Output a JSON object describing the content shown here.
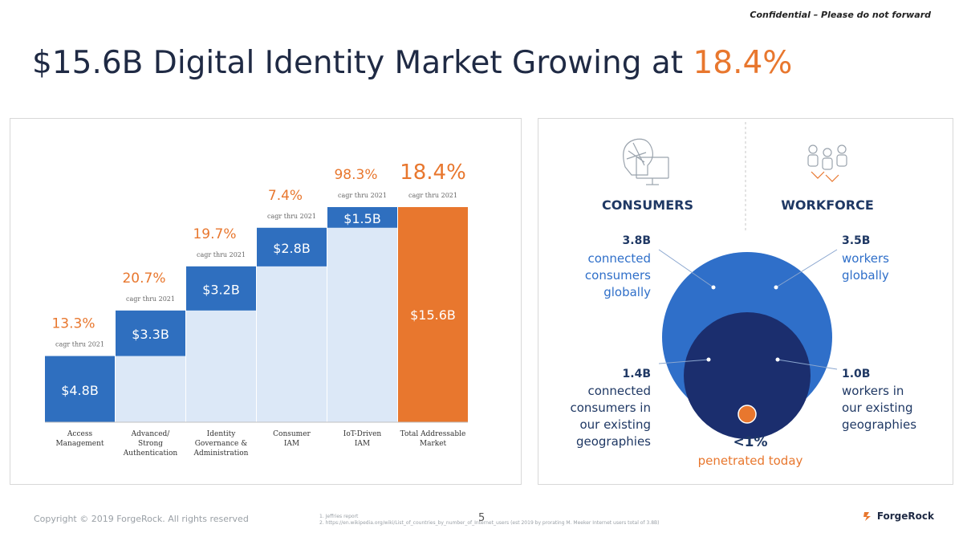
{
  "header": {
    "confidential": "Confidential – Please do not forward",
    "title_main": "$15.6B Digital Identity Market Growing at ",
    "title_accent": "18.4%"
  },
  "chart_data": {
    "type": "bar",
    "subtype": "waterfall",
    "categories": [
      "Access Management",
      "Advanced/ Strong Authentication",
      "Identity Governance & Administration",
      "Consumer IAM",
      "IoT-Driven IAM",
      "Total Addressable Market"
    ],
    "category_lines": [
      [
        "Access",
        "Management"
      ],
      [
        "Advanced/",
        "Strong",
        "Authentication"
      ],
      [
        "Identity",
        "Governance &",
        "Administration"
      ],
      [
        "Consumer",
        "IAM"
      ],
      [
        "IoT-Driven",
        "IAM"
      ],
      [
        "Total Addressable",
        "Market"
      ]
    ],
    "values": [
      4.8,
      3.3,
      3.2,
      2.8,
      1.5,
      15.6
    ],
    "value_labels": [
      "$4.8B",
      "$3.3B",
      "$3.2B",
      "$2.8B",
      "$1.5B",
      "$15.6B"
    ],
    "cagr": [
      "13.3%",
      "20.7%",
      "19.7%",
      "7.4%",
      "98.3%",
      "18.4%"
    ],
    "cagr_caption": "cagr thru 2021",
    "colors": {
      "segment": "#2f6fbf",
      "shadow": "#dce8f7",
      "total": "#e8772e",
      "cagr": "#e8772e"
    }
  },
  "right": {
    "consumers_heading": "CONSUMERS",
    "workforce_heading": "WORKFORCE",
    "consumers_outer_value": "3.8B",
    "consumers_outer_desc": [
      "connected",
      "consumers",
      "globally"
    ],
    "workforce_outer_value": "3.5B",
    "workforce_outer_desc": [
      "workers",
      "globally"
    ],
    "consumers_inner_value": "1.4B",
    "consumers_inner_desc": [
      "connected",
      "consumers in",
      "our existing",
      "geographies"
    ],
    "workforce_inner_value": "1.0B",
    "workforce_inner_desc": [
      "workers in",
      "our existing",
      "geographies"
    ],
    "penetration_value": "<1%",
    "penetration_desc": "penetrated today",
    "icons": {
      "consumer": "consumer-head-icon",
      "workforce": "workforce-people-icon"
    }
  },
  "footer": {
    "copyright": "Copyright © 2019 ForgeRock. All rights reserved",
    "page_number": "5",
    "sources": [
      "1. Jeffries report",
      "2. https://en.wikipedia.org/wiki/List_of_countries_by_number_of_Internet_users (est 2019 by prorating M. Meeker Internet users total of 3.8B)"
    ],
    "logo_text": "ForgeRock"
  }
}
